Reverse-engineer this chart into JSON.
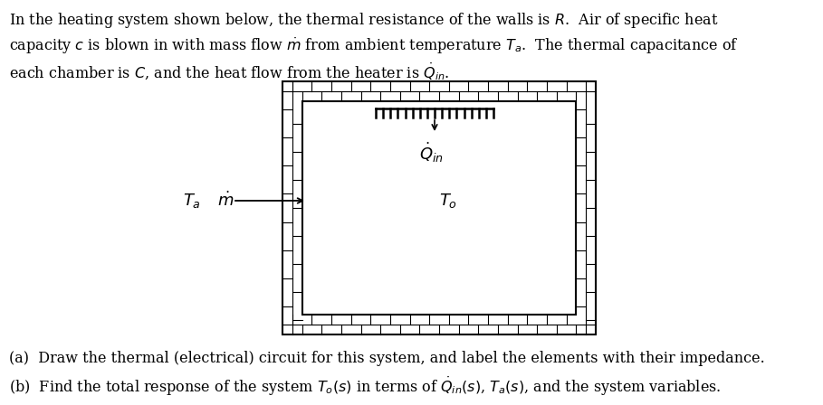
{
  "background_color": "#ffffff",
  "text_color": "#000000",
  "line1": "In the heating system shown below, the thermal resistance of the walls is $R$.  Air of specific heat",
  "line2": "capacity $c$ is blown in with mass flow $\\dot{m}$ from ambient temperature $T_a$.  The thermal capacitance of",
  "line3": "each chamber is $C$, and the heat flow from the heater is $\\dot{Q}_{in}$.",
  "question_a": "(a)  Draw the thermal (electrical) circuit for this system, and label the elements with their impedance.",
  "question_b": "(b)  Find the total response of the system $T_o(s)$ in terms of $\\dot{Q}_{in}(s)$, $T_a(s)$, and the system variables.",
  "heater_label": "$\\dot{Q}_{in}$",
  "Ta_label": "$T_a$",
  "mdot_label": "$\\dot{m}$",
  "To_label": "$T_o$",
  "fontsize_body": 11.5,
  "fontsize_labels": 13
}
